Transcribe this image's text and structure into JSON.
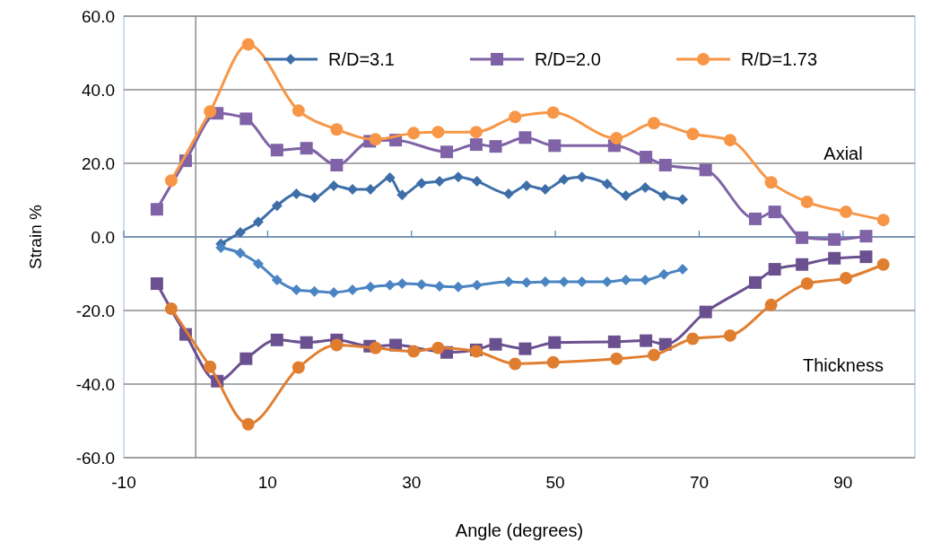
{
  "chart_data": {
    "type": "line",
    "xlabel": "Angle (degrees)",
    "ylabel": "Strain %",
    "xlim": [
      -10,
      100
    ],
    "xticks": [
      -10,
      10,
      30,
      50,
      70,
      90
    ],
    "ylim": [
      -60,
      60
    ],
    "yticks": [
      {
        "value": -60,
        "label": "-60.0"
      },
      {
        "value": -40,
        "label": "-40.0"
      },
      {
        "value": -20,
        "label": "-20.0"
      },
      {
        "value": 0,
        "label": "0.0"
      },
      {
        "value": 20,
        "label": "20.0"
      },
      {
        "value": 40,
        "label": "40.0"
      },
      {
        "value": 60,
        "label": "60.0"
      }
    ],
    "grid": "y",
    "legend": "top",
    "annotations": [
      "Axial",
      "Thickness"
    ],
    "ref_lines": [
      {
        "axis": "y",
        "value": 0,
        "color": "#4f81bd"
      }
    ],
    "series": [
      {
        "name": "R/D=3.1",
        "color": "#3e6ea8",
        "marker": "diamond",
        "x": [
          3.5,
          6.2,
          8.7,
          11.3,
          14.0,
          16.5,
          19.2,
          21.8,
          24.3,
          27.0,
          28.7,
          31.4,
          33.9,
          36.5,
          39.1,
          43.5,
          46,
          48.6,
          51.2,
          53.7,
          57.2,
          59.8,
          62.5,
          65.1,
          67.7
        ],
        "values": [
          -1.9,
          1.2,
          4.1,
          8.5,
          11.7,
          10.7,
          13.9,
          12.9,
          12.9,
          16.1,
          11.4,
          14.6,
          15.1,
          16.3,
          15.1,
          11.7,
          13.9,
          12.9,
          15.6,
          16.3,
          14.4,
          11.2,
          13.4,
          11.2,
          10.2
        ]
      },
      {
        "name": "R/D=2.0",
        "color": "#7f63a6",
        "marker": "square",
        "x": [
          -5.4,
          -1.4,
          3.0,
          7.0,
          11.3,
          15.4,
          19.6,
          24.2,
          27.8,
          34.9,
          39.0,
          41.7,
          45.8,
          49.9,
          58.2,
          62.6,
          65.3,
          70.9,
          77.8,
          80.5,
          84.3,
          88.8,
          93.2
        ],
        "values": [
          7.5,
          20.7,
          33.6,
          32.1,
          23.6,
          24.1,
          19.5,
          26.0,
          26.3,
          23.1,
          25.1,
          24.6,
          27.0,
          24.8,
          24.8,
          21.7,
          19.5,
          18.2,
          4.9,
          6.8,
          -0.2,
          -0.7,
          0.2
        ]
      },
      {
        "name": "R/D=1.73",
        "color": "#f79646",
        "marker": "circle",
        "x": [
          -3.4,
          2.0,
          7.3,
          14.3,
          19.6,
          25,
          30.3,
          33.7,
          39.0,
          44.4,
          49.7,
          58.5,
          63.7,
          69.1,
          74.3,
          80.0,
          85.0,
          90.4,
          95.6
        ],
        "values": [
          15.3,
          34.1,
          52.3,
          34.3,
          29.2,
          26.5,
          28.2,
          28.5,
          28.5,
          32.6,
          33.8,
          26.8,
          30.9,
          28.0,
          26.3,
          14.8,
          9.5,
          6.8,
          4.6
        ]
      },
      {
        "color": "#4a84c2",
        "marker": "diamond",
        "x": [
          3.5,
          6.2,
          8.7,
          11.3,
          14.0,
          16.5,
          19.2,
          21.8,
          24.3,
          27.0,
          28.7,
          31.4,
          33.9,
          36.5,
          39.1,
          43.5,
          46,
          48.6,
          51.2,
          53.7,
          57.2,
          59.8,
          62.5,
          65.1,
          67.7
        ],
        "values": [
          -2.9,
          -4.4,
          -7.3,
          -11.7,
          -14.4,
          -14.8,
          -15.1,
          -14.4,
          -13.6,
          -13.1,
          -12.7,
          -12.9,
          -13.4,
          -13.6,
          -13.1,
          -12.2,
          -12.4,
          -12.2,
          -12.2,
          -12.2,
          -12.2,
          -11.7,
          -11.7,
          -10.2,
          -8.8
        ]
      },
      {
        "color": "#6b5090",
        "marker": "square",
        "x": [
          -5.4,
          -1.4,
          3.0,
          7.0,
          11.3,
          15.4,
          19.6,
          24.2,
          27.8,
          34.9,
          39.0,
          41.7,
          45.8,
          49.9,
          58.2,
          62.6,
          65.3,
          70.9,
          77.8,
          80.5,
          84.3,
          88.8,
          93.2
        ],
        "values": [
          -12.7,
          -26.5,
          -39.2,
          -33.1,
          -28.0,
          -28.7,
          -28.0,
          -29.7,
          -29.4,
          -31.4,
          -30.7,
          -29.2,
          -30.4,
          -28.7,
          -28.5,
          -28.2,
          -29.2,
          -20.4,
          -12.4,
          -8.8,
          -7.5,
          -5.8,
          -5.4
        ]
      },
      {
        "color": "#e07e30",
        "marker": "circle",
        "x": [
          -3.4,
          2,
          7.3,
          14.3,
          19.6,
          25,
          30.3,
          33.7,
          39.0,
          44.4,
          49.7,
          58.5,
          63.7,
          69.1,
          74.3,
          80,
          85,
          90.4,
          95.6
        ],
        "values": [
          -19.5,
          -35.3,
          -50.9,
          -35.5,
          -29.4,
          -30.2,
          -31.1,
          -30.2,
          -31.1,
          -34.5,
          -34.1,
          -33.1,
          -32.1,
          -27.7,
          -26.8,
          -18.5,
          -12.7,
          -11.2,
          -7.5
        ]
      }
    ]
  }
}
